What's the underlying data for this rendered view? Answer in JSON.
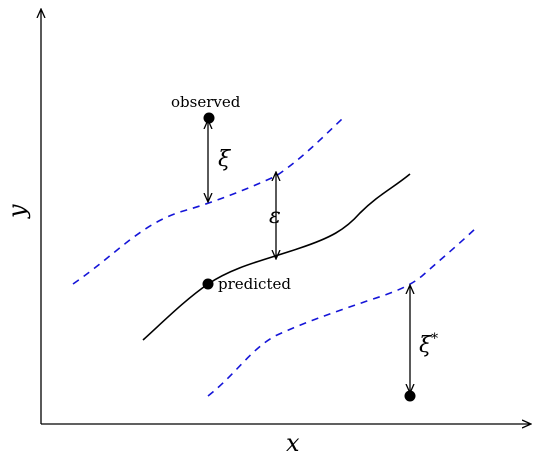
{
  "axes": {
    "x_label": "x",
    "y_label": "y"
  },
  "points": {
    "observed_label": "observed",
    "predicted_label": "predicted"
  },
  "annotations": {
    "xi": "ξ",
    "epsilon": "ε",
    "xi_star_base": "ξ",
    "xi_star_sup": "*"
  },
  "colors": {
    "band": "#1515d8",
    "curve": "#000000"
  }
}
